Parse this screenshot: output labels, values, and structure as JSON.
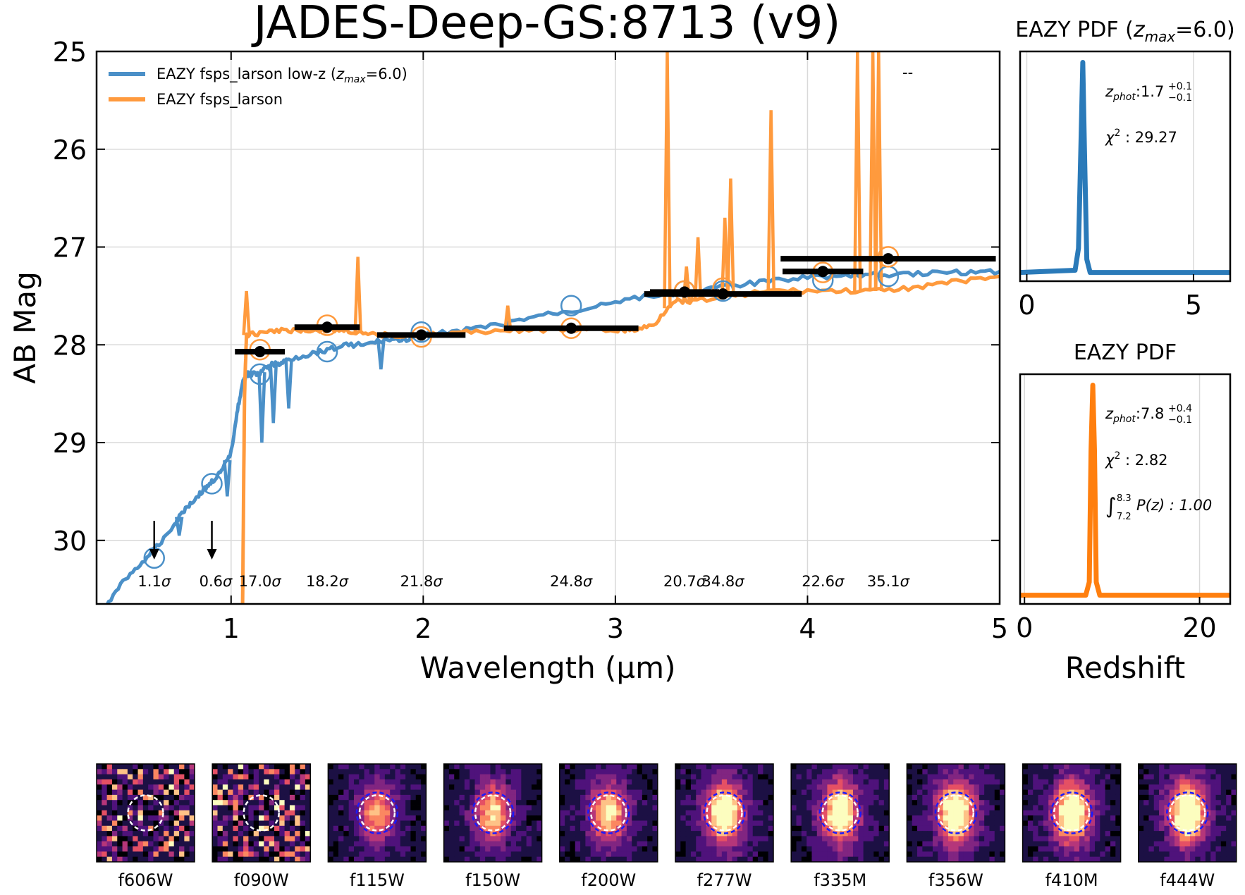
{
  "chart_data": [
    {
      "type": "line",
      "title": "JADES-Deep-GS:8713 (v9)",
      "xlabel": "Wavelength (µm)",
      "ylabel": "AB Mag",
      "xlim": [
        0.3,
        5.0
      ],
      "ylim": [
        30.65,
        25.0
      ],
      "x_ticks": [
        1,
        2,
        3,
        4,
        5
      ],
      "x_tick_labels": [
        "1",
        "2",
        "3",
        "4",
        "5"
      ],
      "y_ticks": [
        25,
        26,
        27,
        28,
        29,
        30
      ],
      "y_tick_labels": [
        "25",
        "26",
        "27",
        "28",
        "29",
        "30"
      ],
      "grid": true,
      "legend_position": "top-left",
      "legend": {
        "entries": [
          {
            "label_main": "EAZY fsps_larson low-z (",
            "label_sym": "z",
            "label_sub": "max",
            "label_tail": "=6.0)",
            "color": "#4b90c8"
          },
          {
            "label_main": "EAZY fsps_larson",
            "color": "#ff9a3d"
          }
        ],
        "extra_mark": "--"
      },
      "series": [
        {
          "name": "EAZY fsps_larson low-z (zmax=6.0)",
          "color": "#4b90c8",
          "x": [
            0.3,
            0.4,
            0.5,
            0.6,
            0.7,
            0.75,
            0.8,
            0.85,
            0.9,
            0.95,
            1.0,
            1.03,
            1.06,
            1.08,
            1.1,
            1.15,
            1.2,
            1.25,
            1.3,
            1.4,
            1.5,
            1.6,
            1.7,
            1.8,
            1.9,
            2.0,
            2.2,
            2.4,
            2.6,
            2.8,
            3.0,
            3.2,
            3.4,
            3.6,
            3.8,
            4.0,
            4.2,
            4.4,
            4.6,
            4.8,
            5.0
          ],
          "y": [
            30.9,
            30.5,
            30.3,
            30.1,
            29.85,
            29.7,
            29.6,
            29.5,
            29.4,
            29.3,
            29.1,
            28.7,
            28.4,
            28.3,
            28.3,
            28.3,
            28.2,
            28.2,
            28.15,
            28.1,
            28.05,
            28.0,
            28.0,
            27.95,
            27.95,
            27.9,
            27.85,
            27.8,
            27.7,
            27.65,
            27.55,
            27.5,
            27.45,
            27.4,
            27.35,
            27.3,
            27.3,
            27.28,
            27.27,
            27.26,
            27.25
          ],
          "abs_lines": [
            {
              "x": 0.73,
              "y": 29.95
            },
            {
              "x": 0.98,
              "y": 29.55
            },
            {
              "x": 1.16,
              "y": 29.0
            },
            {
              "x": 1.22,
              "y": 28.8
            },
            {
              "x": 1.3,
              "y": 28.65
            },
            {
              "x": 1.78,
              "y": 28.25
            }
          ]
        },
        {
          "name": "EAZY fsps_larson",
          "color": "#ff9a3d",
          "x": [
            1.06,
            1.07,
            1.08,
            1.1,
            1.2,
            1.3,
            1.4,
            1.5,
            1.6,
            1.7,
            1.8,
            2.0,
            2.2,
            2.4,
            2.6,
            2.8,
            3.0,
            3.1,
            3.2,
            3.3,
            3.4,
            3.6,
            3.8,
            4.0,
            4.2,
            4.4,
            4.6,
            4.8,
            5.0
          ],
          "y": [
            30.65,
            28.5,
            27.9,
            27.9,
            27.85,
            27.85,
            27.85,
            27.85,
            27.85,
            27.9,
            27.9,
            27.9,
            27.88,
            27.85,
            27.85,
            27.85,
            27.85,
            27.85,
            27.8,
            27.55,
            27.55,
            27.5,
            27.45,
            27.45,
            27.45,
            27.45,
            27.4,
            27.35,
            27.3
          ],
          "emission_lines": [
            {
              "x": 1.08,
              "y": 27.45
            },
            {
              "x": 1.66,
              "y": 27.1
            },
            {
              "x": 2.44,
              "y": 27.6
            },
            {
              "x": 3.27,
              "y": 25.0
            },
            {
              "x": 3.37,
              "y": 27.2
            },
            {
              "x": 3.43,
              "y": 26.9
            },
            {
              "x": 3.57,
              "y": 26.7
            },
            {
              "x": 3.6,
              "y": 26.3
            },
            {
              "x": 3.81,
              "y": 25.6
            },
            {
              "x": 4.26,
              "y": 25.0
            },
            {
              "x": 4.34,
              "y": 25.0
            },
            {
              "x": 4.37,
              "y": 25.0
            }
          ]
        }
      ],
      "photometry": [
        {
          "x": 1.15,
          "y": 28.07,
          "xerr": 0.13
        },
        {
          "x": 1.5,
          "y": 27.82,
          "xerr": 0.17
        },
        {
          "x": 1.99,
          "y": 27.9,
          "xerr": 0.23
        },
        {
          "x": 2.77,
          "y": 27.83,
          "xerr": 0.35
        },
        {
          "x": 3.36,
          "y": 27.46,
          "xerr": 0.18
        },
        {
          "x": 3.56,
          "y": 27.48,
          "xerr": 0.41
        },
        {
          "x": 4.08,
          "y": 27.25,
          "xerr": 0.21
        },
        {
          "x": 4.42,
          "y": 27.12,
          "xerr": 0.56
        }
      ],
      "upper_limits": [
        {
          "x": 0.6,
          "y": 29.8
        },
        {
          "x": 0.9,
          "y": 29.8
        }
      ],
      "model_points_lowz": [
        {
          "x": 0.6,
          "y": 30.18
        },
        {
          "x": 0.9,
          "y": 29.42
        },
        {
          "x": 1.15,
          "y": 28.3
        },
        {
          "x": 1.5,
          "y": 28.07
        },
        {
          "x": 1.99,
          "y": 27.87
        },
        {
          "x": 2.77,
          "y": 27.6
        },
        {
          "x": 3.36,
          "y": 27.45
        },
        {
          "x": 3.56,
          "y": 27.45
        },
        {
          "x": 4.08,
          "y": 27.34
        },
        {
          "x": 4.42,
          "y": 27.3
        }
      ],
      "model_points_best": [
        {
          "x": 1.15,
          "y": 28.05
        },
        {
          "x": 1.5,
          "y": 27.8
        },
        {
          "x": 1.99,
          "y": 27.92
        },
        {
          "x": 2.77,
          "y": 27.83
        },
        {
          "x": 3.36,
          "y": 27.45
        },
        {
          "x": 3.56,
          "y": 27.42
        },
        {
          "x": 4.08,
          "y": 27.26
        },
        {
          "x": 4.42,
          "y": 27.1
        }
      ],
      "sn_labels": [
        {
          "x": 0.6,
          "num": "1.1"
        },
        {
          "x": 0.92,
          "num": "0.6"
        },
        {
          "x": 1.15,
          "num": "17.0"
        },
        {
          "x": 1.5,
          "num": "18.2"
        },
        {
          "x": 1.99,
          "num": "21.8"
        },
        {
          "x": 2.77,
          "num": "24.8"
        },
        {
          "x": 3.36,
          "num": "20.7"
        },
        {
          "x": 3.56,
          "num": "34.8"
        },
        {
          "x": 4.08,
          "num": "22.6"
        },
        {
          "x": 4.42,
          "num": "35.1"
        }
      ],
      "sigma_symbol": "σ"
    },
    {
      "type": "line",
      "name": "pdf-lowz",
      "title_main": "EAZY PDF (",
      "title_sym": "z",
      "title_sub": "max",
      "title_tail": "=6.0)",
      "color": "#2a7ab9",
      "xlim": [
        -0.2,
        6.1
      ],
      "ylim": [
        0,
        1.05
      ],
      "x_ticks": [
        0,
        5
      ],
      "x_tick_labels": [
        "0",
        "5"
      ],
      "x": [
        -0.2,
        1.45,
        1.55,
        1.62,
        1.68,
        1.73,
        1.8,
        1.9,
        6.1
      ],
      "y": [
        0.04,
        0.05,
        0.15,
        0.6,
        1.0,
        0.6,
        0.1,
        0.04,
        0.04
      ],
      "stats": {
        "zphot_sym": "z",
        "zphot_sub": "phot",
        "zphot_value": "1.7",
        "zphot_up": "+0.1",
        "zphot_low": "−0.1",
        "chi2_sym": "χ",
        "chi2_sup": "2",
        "chi2_value": " : 29.27"
      }
    },
    {
      "type": "line",
      "name": "pdf-best",
      "title": "EAZY PDF",
      "color": "#ff7f0e",
      "xlim": [
        -0.5,
        23.5
      ],
      "ylim": [
        0,
        1.05
      ],
      "x_ticks": [
        0,
        20
      ],
      "x_tick_labels": [
        "0",
        "20"
      ],
      "xlabel": "Redshift",
      "x": [
        -0.5,
        7.0,
        7.4,
        7.6,
        7.8,
        8.0,
        8.2,
        8.6,
        23.5
      ],
      "y": [
        0.04,
        0.04,
        0.1,
        0.7,
        1.0,
        0.7,
        0.1,
        0.04,
        0.04
      ],
      "stats": {
        "zphot_sym": "z",
        "zphot_sub": "phot",
        "zphot_value": "7.8",
        "zphot_up": "+0.4",
        "zphot_low": "−0.1",
        "chi2_sym": "χ",
        "chi2_sup": "2",
        "chi2_value": " : 2.82",
        "int_sym": "∫",
        "int_upper": "8.3",
        "int_lower": "7.2",
        "int_body": "P(z) : 1.00"
      }
    }
  ],
  "stamps": [
    {
      "label": "f606W",
      "seed": 11,
      "level": 0.0,
      "blue_circle": false
    },
    {
      "label": "f090W",
      "seed": 23,
      "level": 0.0,
      "blue_circle": false
    },
    {
      "label": "f115W",
      "seed": 37,
      "level": 0.55,
      "blue_circle": true
    },
    {
      "label": "f150W",
      "seed": 41,
      "level": 0.65,
      "blue_circle": true
    },
    {
      "label": "f200W",
      "seed": 53,
      "level": 0.7,
      "blue_circle": true
    },
    {
      "label": "f277W",
      "seed": 67,
      "level": 0.9,
      "blue_circle": true
    },
    {
      "label": "f335M",
      "seed": 71,
      "level": 0.85,
      "blue_circle": true
    },
    {
      "label": "f356W",
      "seed": 83,
      "level": 0.95,
      "blue_circle": true
    },
    {
      "label": "f410M",
      "seed": 97,
      "level": 0.9,
      "blue_circle": true
    },
    {
      "label": "f444W",
      "seed": 101,
      "level": 0.95,
      "blue_circle": true
    }
  ]
}
